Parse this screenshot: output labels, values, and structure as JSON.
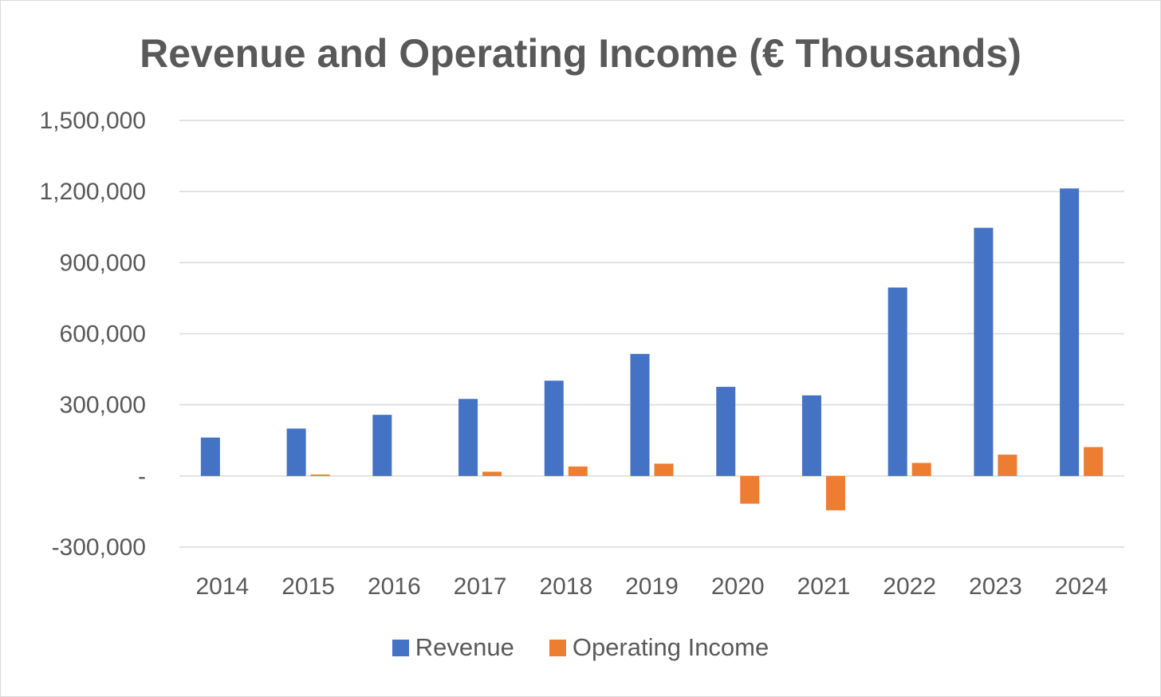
{
  "chart_data": {
    "type": "bar",
    "title": "Revenue and Operating Income (€ Thousands)",
    "xlabel": "",
    "ylabel": "",
    "categories": [
      "2014",
      "2015",
      "2016",
      "2017",
      "2018",
      "2019",
      "2020",
      "2021",
      "2022",
      "2023",
      "2024"
    ],
    "series": [
      {
        "name": "Revenue",
        "color": "#4472C4",
        "values": [
          162000,
          200000,
          258000,
          325000,
          402000,
          515000,
          376000,
          340000,
          795000,
          1047000,
          1213000
        ]
      },
      {
        "name": "Operating Income",
        "color": "#ED7D31",
        "values": [
          0,
          6000,
          0,
          18000,
          40000,
          52000,
          -117000,
          -145000,
          55000,
          90000,
          122000
        ]
      }
    ],
    "ylim": [
      -300000,
      1500000
    ],
    "yticks": [
      1500000,
      1200000,
      900000,
      600000,
      300000,
      0,
      -300000
    ],
    "ytick_labels": [
      "1,500,000",
      "1,200,000",
      "900,000",
      "600,000",
      "300,000",
      "-",
      "-300,000"
    ],
    "grid": true,
    "legend_position": "bottom"
  }
}
